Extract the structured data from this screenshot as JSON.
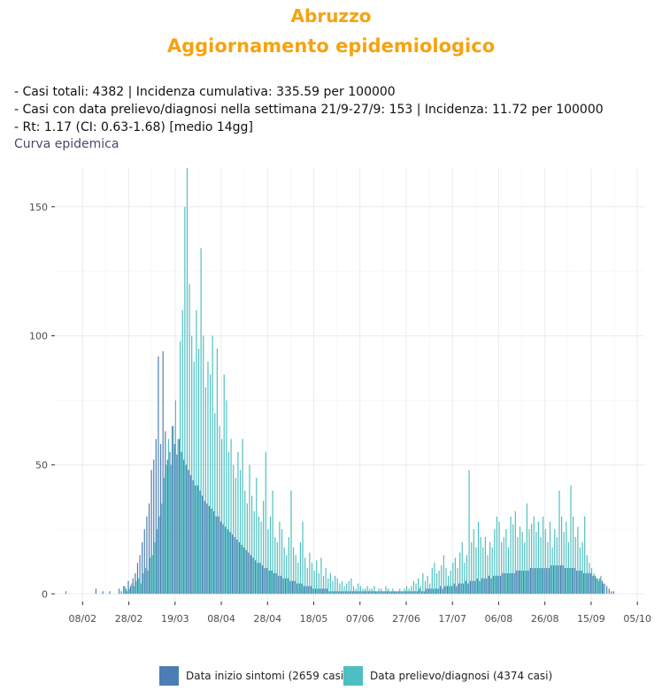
{
  "header": {
    "title": "Abruzzo",
    "subtitle": "Aggiornamento epidemiologico"
  },
  "info": {
    "line1": "- Casi totali: 4382 | Incidenza cumulativa: 335.59 per 100000",
    "line2": "- Casi con data prelievo/diagnosi nella settimana 21/9-27/9: 153 | Incidenza: 11.72 per 100000",
    "line3": "- Rt: 1.17 (CI: 0.63-1.68) [medio 14gg]"
  },
  "chart_section_label": "Curva epidemica",
  "colors": {
    "title": "#F5A30F",
    "onset": "#4C7DB3",
    "diagnosis": "#4DBFC1",
    "grid": "#EBEBEB",
    "axis_text": "#4D4D4D"
  },
  "chart_data": {
    "type": "bar",
    "x_type": "date",
    "x_range": [
      "2020-01-27",
      "2020-10-08"
    ],
    "ylim": [
      -3,
      165
    ],
    "yticks": [
      0,
      50,
      100,
      150
    ],
    "xticks": [
      {
        "date": "2020-02-08",
        "label": "08/02"
      },
      {
        "date": "2020-02-28",
        "label": "28/02"
      },
      {
        "date": "2020-03-19",
        "label": "19/03"
      },
      {
        "date": "2020-04-08",
        "label": "08/04"
      },
      {
        "date": "2020-04-28",
        "label": "28/04"
      },
      {
        "date": "2020-05-18",
        "label": "18/05"
      },
      {
        "date": "2020-06-07",
        "label": "07/06"
      },
      {
        "date": "2020-06-27",
        "label": "27/06"
      },
      {
        "date": "2020-07-17",
        "label": "17/07"
      },
      {
        "date": "2020-08-06",
        "label": "06/08"
      },
      {
        "date": "2020-08-26",
        "label": "26/08"
      },
      {
        "date": "2020-09-15",
        "label": "15/09"
      },
      {
        "date": "2020-10-05",
        "label": "05/10"
      }
    ],
    "legend_position": "bottom",
    "series": [
      {
        "name": "Data inizio sintomi (2659 casi)",
        "start": "2020-02-01",
        "values": [
          1,
          0,
          0,
          0,
          0,
          0,
          0,
          0,
          0,
          0,
          0,
          0,
          0,
          2,
          0,
          0,
          1,
          0,
          0,
          1,
          0,
          0,
          0,
          2,
          1,
          3,
          2,
          5,
          3,
          6,
          8,
          12,
          15,
          20,
          25,
          30,
          35,
          48,
          52,
          60,
          92,
          58,
          94,
          63,
          52,
          55,
          65,
          58,
          54,
          60,
          55,
          52,
          50,
          48,
          46,
          44,
          42,
          42,
          40,
          38,
          36,
          35,
          34,
          33,
          32,
          30,
          30,
          28,
          27,
          26,
          25,
          24,
          23,
          22,
          21,
          20,
          19,
          18,
          17,
          16,
          15,
          14,
          13,
          12,
          12,
          11,
          10,
          10,
          9,
          9,
          8,
          8,
          7,
          7,
          6,
          6,
          6,
          5,
          5,
          5,
          4,
          4,
          4,
          3,
          3,
          3,
          3,
          2,
          2,
          2,
          2,
          2,
          2,
          2,
          1,
          1,
          1,
          1,
          1,
          1,
          1,
          1,
          1,
          1,
          1,
          1,
          1,
          1,
          1,
          1,
          1,
          1,
          1,
          1,
          1,
          1,
          1,
          1,
          1,
          1,
          1,
          1,
          1,
          1,
          1,
          1,
          1,
          1,
          1,
          1,
          1,
          1,
          1,
          2,
          1,
          1,
          2,
          2,
          2,
          2,
          2,
          2,
          3,
          2,
          3,
          3,
          3,
          3,
          4,
          3,
          4,
          4,
          4,
          5,
          4,
          5,
          5,
          5,
          6,
          5,
          6,
          6,
          6,
          7,
          6,
          7,
          7,
          7,
          7,
          8,
          8,
          8,
          8,
          8,
          8,
          9,
          9,
          9,
          9,
          9,
          9,
          10,
          10,
          10,
          10,
          10,
          10,
          10,
          10,
          10,
          11,
          11,
          11,
          11,
          11,
          11,
          10,
          10,
          10,
          10,
          10,
          9,
          9,
          9,
          8,
          8,
          8,
          8,
          7,
          7,
          6,
          6,
          5,
          4,
          3,
          2,
          1,
          1
        ]
      },
      {
        "name": "Data prelievo/diagnosi (4374 casi)",
        "start": "2020-02-01",
        "values": [
          0,
          0,
          0,
          0,
          0,
          0,
          0,
          0,
          0,
          0,
          0,
          0,
          0,
          0,
          0,
          0,
          0,
          0,
          0,
          0,
          0,
          0,
          0,
          0,
          0,
          3,
          1,
          2,
          4,
          3,
          5,
          6,
          4,
          8,
          10,
          9,
          14,
          15,
          20,
          25,
          30,
          35,
          45,
          50,
          60,
          50,
          65,
          75,
          60,
          98,
          110,
          150,
          165,
          120,
          100,
          90,
          110,
          95,
          134,
          100,
          80,
          90,
          85,
          100,
          70,
          95,
          65,
          60,
          85,
          75,
          55,
          60,
          50,
          45,
          55,
          48,
          60,
          40,
          35,
          50,
          38,
          32,
          45,
          30,
          28,
          36,
          55,
          25,
          30,
          40,
          22,
          20,
          28,
          25,
          18,
          15,
          22,
          40,
          18,
          15,
          12,
          20,
          28,
          14,
          10,
          16,
          12,
          9,
          13,
          8,
          14,
          7,
          10,
          6,
          8,
          5,
          7,
          6,
          4,
          5,
          3,
          4,
          5,
          6,
          3,
          2,
          4,
          3,
          2,
          2,
          3,
          2,
          2,
          3,
          1,
          2,
          2,
          1,
          3,
          2,
          1,
          2,
          1,
          1,
          2,
          1,
          2,
          3,
          2,
          3,
          5,
          4,
          6,
          3,
          8,
          5,
          7,
          4,
          10,
          12,
          8,
          9,
          11,
          15,
          10,
          7,
          9,
          12,
          14,
          10,
          16,
          20,
          12,
          15,
          48,
          20,
          25,
          18,
          28,
          22,
          18,
          22,
          15,
          20,
          18,
          25,
          30,
          28,
          20,
          22,
          25,
          18,
          30,
          27,
          32,
          22,
          26,
          24,
          20,
          35,
          25,
          27,
          30,
          24,
          28,
          22,
          30,
          25,
          20,
          28,
          18,
          25,
          22,
          40,
          30,
          24,
          28,
          20,
          42,
          30,
          22,
          26,
          18,
          20,
          30,
          15,
          12,
          10,
          8,
          6,
          5,
          7,
          4
        ]
      }
    ]
  },
  "legend": {
    "onset_label": "Data inizio sintomi (2659 casi)",
    "diagnosis_label": "Data prelievo/diagnosi (4374 casi)"
  }
}
